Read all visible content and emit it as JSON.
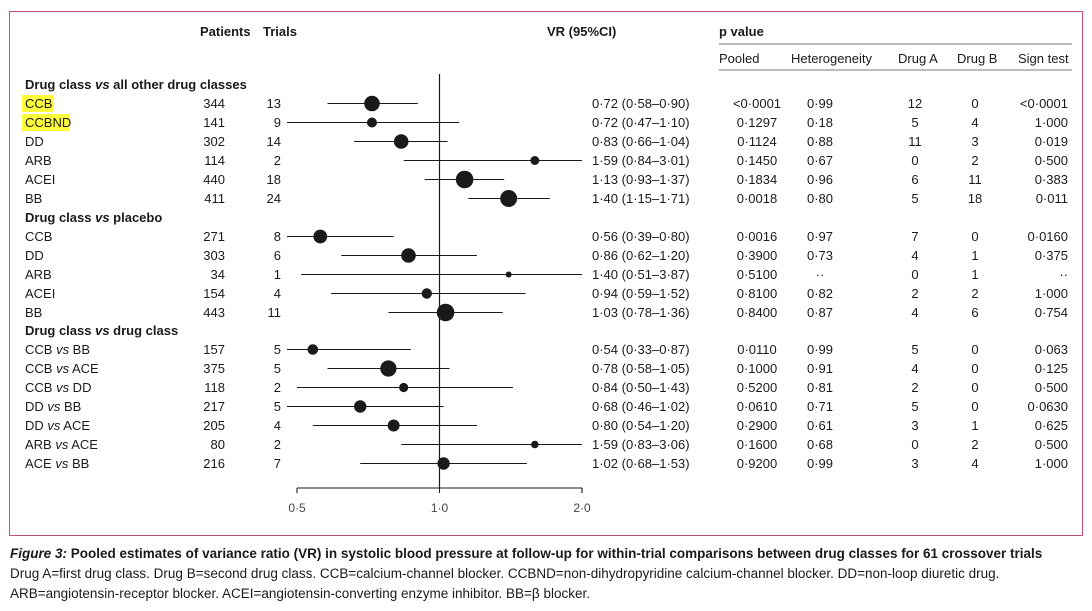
{
  "headers": {
    "patients": "Patients",
    "trials": "Trials",
    "vr": "VR (95%CI)",
    "p_value": "p value",
    "pooled": "Pooled",
    "heterogeneity": "Heterogeneity",
    "drug_a": "Drug A",
    "drug_b": "Drug B",
    "sign_test": "Sign test"
  },
  "colors": {
    "frame": "#c0507a",
    "highlight": "#ffff3c",
    "marker": "#1a1a1a"
  },
  "caption": {
    "title": "Figure 3: Pooled estimates of variance ratio (VR) in systolic blood pressure at follow-up for within-trial comparisons between drug classes for 61 crossover trials",
    "line1": "Drug A=first drug class. Drug B=second drug class. CCB=calcium-channel blocker. CCBND=non-dihydropyridine calcium-channel blocker. DD=non-loop diuretic drug.",
    "line2": "ARB=angiotensin-receptor blocker. ACEI=angiotensin-converting enzyme inhibitor. BB=β blocker."
  },
  "chart_data": {
    "type": "forest",
    "title": "Pooled estimates of variance ratio (VR) in systolic blood pressure",
    "xlabel": "VR (95%CI)",
    "xlim": [
      0.5,
      2.0
    ],
    "xticks": [
      0.5,
      1.0,
      2.0
    ],
    "xtick_labels": [
      "0·5",
      "1·0",
      "2·0"
    ],
    "reference_line": 1.0,
    "scale": "log",
    "groups": [
      {
        "title_parts": [
          "Drug class ",
          "vs",
          " all other drug classes"
        ],
        "rows": [
          {
            "label_parts": [
              "CCB"
            ],
            "highlight": true,
            "patients": "344",
            "trials": "13",
            "vr": 0.72,
            "lo": 0.58,
            "hi": 0.9,
            "ci_text": "0·72 (0·58–0·90)",
            "pooled": "<0·0001",
            "heterogeneity": "0·99",
            "drug_a": "12",
            "drug_b": "0",
            "sign_test": "<0·0001"
          },
          {
            "label_parts": [
              "CCBND"
            ],
            "highlight": true,
            "patients": "141",
            "trials": "9",
            "vr": 0.72,
            "lo": 0.47,
            "hi": 1.1,
            "ci_text": "0·72 (0·47–1·10)",
            "pooled": "0·1297",
            "heterogeneity": "0·18",
            "drug_a": "5",
            "drug_b": "4",
            "sign_test": "1·000"
          },
          {
            "label_parts": [
              "DD"
            ],
            "highlight": false,
            "patients": "302",
            "trials": "14",
            "vr": 0.83,
            "lo": 0.66,
            "hi": 1.04,
            "ci_text": "0·83 (0·66–1·04)",
            "pooled": "0·1124",
            "heterogeneity": "0·88",
            "drug_a": "11",
            "drug_b": "3",
            "sign_test": "0·019"
          },
          {
            "label_parts": [
              "ARB"
            ],
            "highlight": false,
            "patients": "114",
            "trials": "2",
            "vr": 1.59,
            "lo": 0.84,
            "hi": 3.01,
            "ci_text": "1·59 (0·84–3·01)",
            "pooled": "0·1450",
            "heterogeneity": "0·67",
            "drug_a": "0",
            "drug_b": "2",
            "sign_test": "0·500"
          },
          {
            "label_parts": [
              "ACEI"
            ],
            "highlight": false,
            "patients": "440",
            "trials": "18",
            "vr": 1.13,
            "lo": 0.93,
            "hi": 1.37,
            "ci_text": "1·13 (0·93–1·37)",
            "pooled": "0·1834",
            "heterogeneity": "0·96",
            "drug_a": "6",
            "drug_b": "11",
            "sign_test": "0·383"
          },
          {
            "label_parts": [
              "BB"
            ],
            "highlight": false,
            "patients": "411",
            "trials": "24",
            "vr": 1.4,
            "lo": 1.15,
            "hi": 1.71,
            "ci_text": "1·40 (1·15–1·71)",
            "pooled": "0·0018",
            "heterogeneity": "0·80",
            "drug_a": "5",
            "drug_b": "18",
            "sign_test": "0·011"
          }
        ]
      },
      {
        "title_parts": [
          "Drug class ",
          "vs",
          " placebo"
        ],
        "rows": [
          {
            "label_parts": [
              "CCB"
            ],
            "highlight": false,
            "patients": "271",
            "trials": "8",
            "vr": 0.56,
            "lo": 0.39,
            "hi": 0.8,
            "ci_text": "0·56 (0·39–0·80)",
            "pooled": "0·0016",
            "heterogeneity": "0·97",
            "drug_a": "7",
            "drug_b": "0",
            "sign_test": "0·0160"
          },
          {
            "label_parts": [
              "DD"
            ],
            "highlight": false,
            "patients": "303",
            "trials": "6",
            "vr": 0.86,
            "lo": 0.62,
            "hi": 1.2,
            "ci_text": "0·86 (0·62–1·20)",
            "pooled": "0·3900",
            "heterogeneity": "0·73",
            "drug_a": "4",
            "drug_b": "1",
            "sign_test": "0·375"
          },
          {
            "label_parts": [
              "ARB"
            ],
            "highlight": false,
            "patients": "34",
            "trials": "1",
            "vr": 1.4,
            "lo": 0.51,
            "hi": 3.87,
            "ci_text": "1·40 (0·51–3·87)",
            "pooled": "0·5100",
            "heterogeneity": "··",
            "drug_a": "0",
            "drug_b": "1",
            "sign_test": "··"
          },
          {
            "label_parts": [
              "ACEI"
            ],
            "highlight": false,
            "patients": "154",
            "trials": "4",
            "vr": 0.94,
            "lo": 0.59,
            "hi": 1.52,
            "ci_text": "0·94 (0·59–1·52)",
            "pooled": "0·8100",
            "heterogeneity": "0·82",
            "drug_a": "2",
            "drug_b": "2",
            "sign_test": "1·000"
          },
          {
            "label_parts": [
              "BB"
            ],
            "highlight": false,
            "patients": "443",
            "trials": "11",
            "vr": 1.03,
            "lo": 0.78,
            "hi": 1.36,
            "ci_text": "1·03 (0·78–1·36)",
            "pooled": "0·8400",
            "heterogeneity": "0·87",
            "drug_a": "4",
            "drug_b": "6",
            "sign_test": "0·754"
          }
        ]
      },
      {
        "title_parts": [
          "Drug class ",
          "vs",
          " drug class"
        ],
        "rows": [
          {
            "label_parts": [
              "CCB ",
              "vs",
              " BB"
            ],
            "highlight": false,
            "patients": "157",
            "trials": "5",
            "vr": 0.54,
            "lo": 0.33,
            "hi": 0.87,
            "ci_text": "0·54 (0·33–0·87)",
            "pooled": "0·0110",
            "heterogeneity": "0·99",
            "drug_a": "5",
            "drug_b": "0",
            "sign_test": "0·063"
          },
          {
            "label_parts": [
              "CCB ",
              "vs",
              " ACE"
            ],
            "highlight": false,
            "patients": "375",
            "trials": "5",
            "vr": 0.78,
            "lo": 0.58,
            "hi": 1.05,
            "ci_text": "0·78 (0·58–1·05)",
            "pooled": "0·1000",
            "heterogeneity": "0·91",
            "drug_a": "4",
            "drug_b": "0",
            "sign_test": "0·125"
          },
          {
            "label_parts": [
              "CCB ",
              "vs",
              " DD"
            ],
            "highlight": false,
            "patients": "118",
            "trials": "2",
            "vr": 0.84,
            "lo": 0.5,
            "hi": 1.43,
            "ci_text": "0·84 (0·50–1·43)",
            "pooled": "0·5200",
            "heterogeneity": "0·81",
            "drug_a": "2",
            "drug_b": "0",
            "sign_test": "0·500"
          },
          {
            "label_parts": [
              "DD ",
              "vs",
              " BB"
            ],
            "highlight": false,
            "patients": "217",
            "trials": "5",
            "vr": 0.68,
            "lo": 0.46,
            "hi": 1.02,
            "ci_text": "0·68 (0·46–1·02)",
            "pooled": "0·0610",
            "heterogeneity": "0·71",
            "drug_a": "5",
            "drug_b": "0",
            "sign_test": "0·0630"
          },
          {
            "label_parts": [
              "DD ",
              "vs",
              " ACE"
            ],
            "highlight": false,
            "patients": "205",
            "trials": "4",
            "vr": 0.8,
            "lo": 0.54,
            "hi": 1.2,
            "ci_text": "0·80 (0·54–1·20)",
            "pooled": "0·2900",
            "heterogeneity": "0·61",
            "drug_a": "3",
            "drug_b": "1",
            "sign_test": "0·625"
          },
          {
            "label_parts": [
              "ARB ",
              "vs",
              " ACE"
            ],
            "highlight": false,
            "patients": "80",
            "trials": "2",
            "vr": 1.59,
            "lo": 0.83,
            "hi": 3.06,
            "ci_text": "1·59 (0·83–3·06)",
            "pooled": "0·1600",
            "heterogeneity": "0·68",
            "drug_a": "0",
            "drug_b": "2",
            "sign_test": "0·500"
          },
          {
            "label_parts": [
              "ACE ",
              "vs",
              " BB"
            ],
            "highlight": false,
            "patients": "216",
            "trials": "7",
            "vr": 1.02,
            "lo": 0.68,
            "hi": 1.53,
            "ci_text": "1·02 (0·68–1·53)",
            "pooled": "0·9200",
            "heterogeneity": "0·99",
            "drug_a": "3",
            "drug_b": "4",
            "sign_test": "1·000"
          }
        ]
      }
    ]
  }
}
